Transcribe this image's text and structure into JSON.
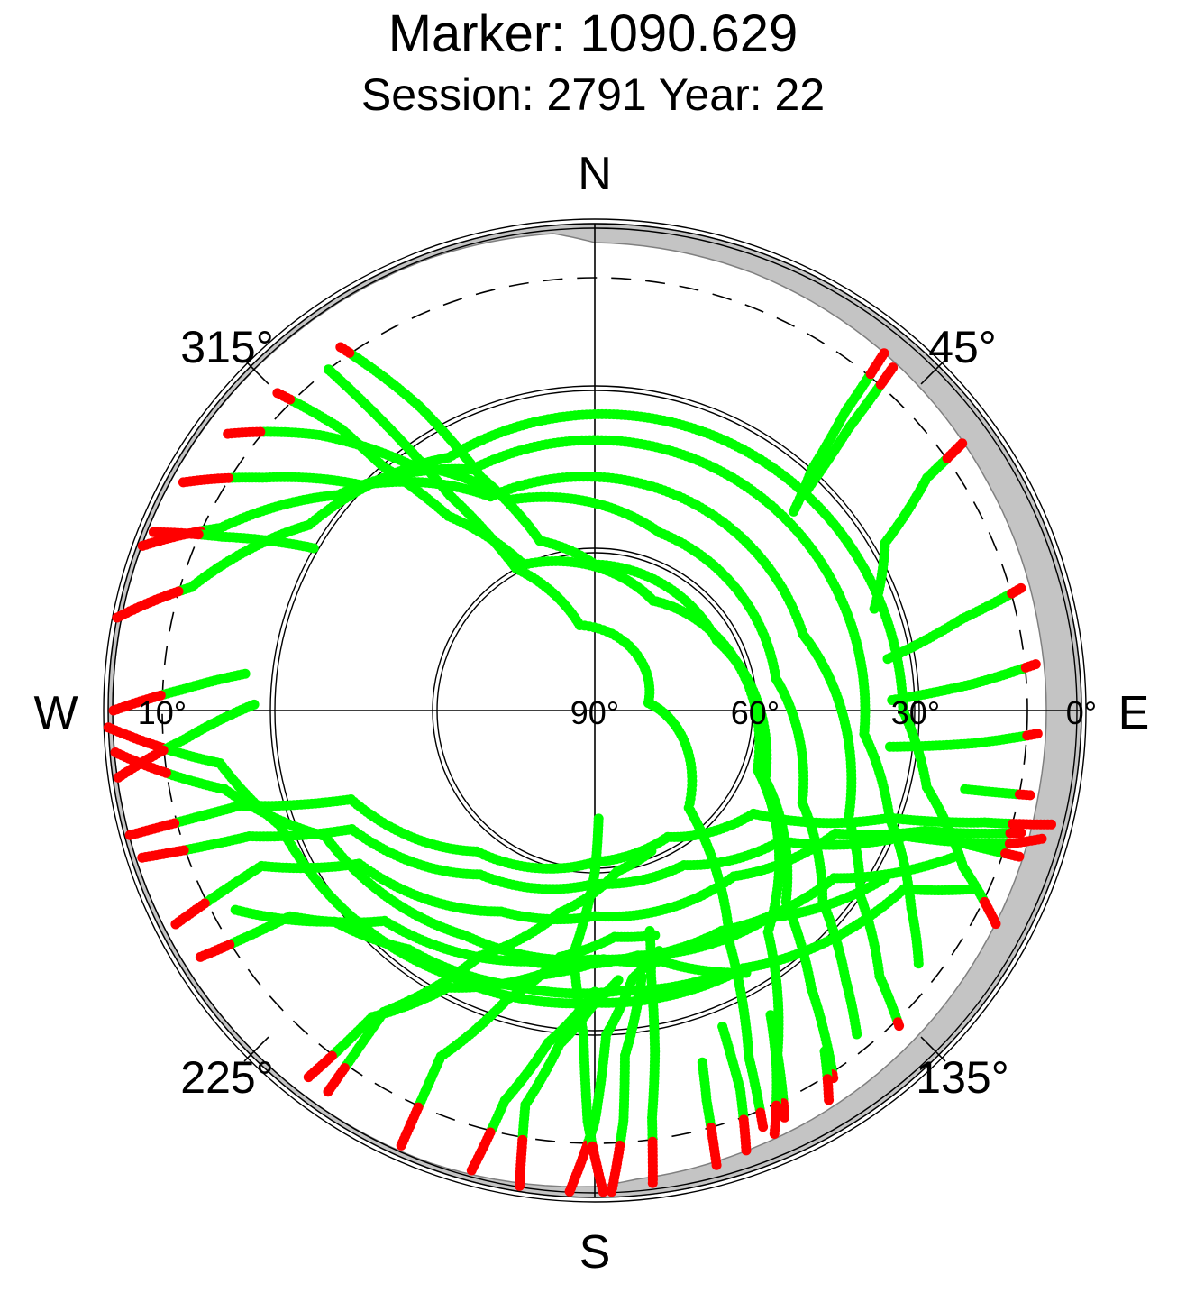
{
  "title": "Marker: 1090.629",
  "subtitle": "Session: 2791 Year: 22",
  "compass": {
    "north": "N",
    "south": "S",
    "west": "W",
    "east": "E"
  },
  "azimuth_labels": [
    "315°",
    "45°",
    "225°",
    "135°"
  ],
  "elevation_labels": [
    "10°",
    "90°",
    "60°",
    "30°",
    "0°"
  ],
  "colors": {
    "track": "#00ff00",
    "low_elevation": "#ff0000",
    "obstruction": "#c4c4c4",
    "rings": "#000000"
  },
  "chart_data": {
    "type": "scatter",
    "projection": "polar-skyplot",
    "title": "Marker: 1090.629",
    "subtitle": "Session: 2791 Year: 22",
    "axes": {
      "azimuth": {
        "unit": "degree",
        "labels": [
          {
            "az": 315,
            "text": "315°"
          },
          {
            "az": 45,
            "text": "45°"
          },
          {
            "az": 225,
            "text": "225°"
          },
          {
            "az": 135,
            "text": "135°"
          }
        ]
      },
      "elevation": {
        "unit": "degree",
        "range": [
          0,
          90
        ],
        "labels": [
          {
            "el": 10,
            "text": "10°",
            "side": "west"
          },
          {
            "el": 90,
            "text": "90°",
            "side": "east"
          },
          {
            "el": 60,
            "text": "60°",
            "side": "east"
          },
          {
            "el": 30,
            "text": "30°",
            "side": "east"
          },
          {
            "el": 0,
            "text": "0°",
            "side": "east"
          }
        ]
      },
      "rings_el": [
        60,
        30,
        0
      ],
      "dashed_ring_el": 10
    },
    "obstruction_mask": [
      {
        "az": 0,
        "el": 3.5
      },
      {
        "az": 20,
        "el": 4
      },
      {
        "az": 40,
        "el": 5
      },
      {
        "az": 60,
        "el": 6
      },
      {
        "az": 80,
        "el": 6.5
      },
      {
        "az": 100,
        "el": 6.5
      },
      {
        "az": 120,
        "el": 6
      },
      {
        "az": 140,
        "el": 5
      },
      {
        "az": 160,
        "el": 4
      },
      {
        "az": 175,
        "el": 3
      },
      {
        "az": 180,
        "el": 2
      },
      {
        "az": 200,
        "el": 1
      },
      {
        "az": 220,
        "el": 0.8
      },
      {
        "az": 260,
        "el": 0.8
      },
      {
        "az": 300,
        "el": 0.8
      },
      {
        "az": 340,
        "el": 1
      },
      {
        "az": 355,
        "el": 1.5
      }
    ],
    "low_elevation_threshold": 10,
    "series": [
      {
        "points": [
          [
            322,
            10
          ],
          [
            324,
            26
          ],
          [
            326,
            42
          ],
          [
            331,
            60
          ],
          [
            350,
            74
          ],
          [
            82,
            80
          ],
          [
            136,
            65
          ],
          [
            150,
            40
          ],
          [
            156,
            20
          ],
          [
            158,
            7
          ]
        ]
      },
      {
        "points": [
          [
            315,
            7
          ],
          [
            318,
            20
          ],
          [
            319,
            30
          ],
          [
            323,
            45
          ],
          [
            334,
            60
          ],
          [
            28,
            67
          ],
          [
            110,
            58
          ],
          [
            142,
            38
          ],
          [
            152,
            18
          ],
          [
            155,
            7
          ]
        ]
      },
      {
        "points": [
          [
            325,
            8
          ],
          [
            330,
            25
          ],
          [
            334,
            42
          ],
          [
            342,
            57
          ],
          [
            0,
            63
          ],
          [
            60,
            64
          ],
          [
            112,
            56
          ],
          [
            135,
            40
          ],
          [
            142,
            25
          ],
          [
            147,
            9
          ]
        ]
      },
      {
        "points": [
          [
            307,
            5
          ],
          [
            315,
            18
          ],
          [
            323,
            33
          ],
          [
            338,
            48
          ],
          [
            20,
            55
          ],
          [
            80,
            56
          ],
          [
            114,
            48
          ],
          [
            130,
            35
          ],
          [
            137,
            22
          ],
          [
            141,
            13
          ]
        ]
      },
      {
        "points": [
          [
            299,
            3
          ],
          [
            305,
            15
          ],
          [
            314,
            30
          ],
          [
            334,
            46
          ],
          [
            70,
            49
          ],
          [
            113,
            39
          ],
          [
            125,
            30
          ],
          [
            133,
            18
          ],
          [
            136,
            9
          ]
        ]
      },
      {
        "points": [
          [
            290,
            1
          ],
          [
            296,
            13
          ],
          [
            310,
            28
          ],
          [
            333,
            40
          ],
          [
            60,
            40
          ],
          [
            95,
            40
          ],
          [
            110,
            32
          ],
          [
            122,
            21
          ],
          [
            128,
            14
          ]
        ]
      },
      {
        "points": [
          [
            281,
            0
          ],
          [
            287,
            12
          ],
          [
            303,
            27
          ],
          [
            330,
            36
          ],
          [
            50,
            34
          ],
          [
            90,
            33
          ],
          [
            103,
            27
          ],
          [
            113,
            16
          ],
          [
            118,
            6
          ]
        ]
      },
      {
        "points": [
          [
            255,
            1
          ],
          [
            255,
            22
          ],
          [
            250,
            42
          ],
          [
            220,
            56
          ],
          [
            180,
            62
          ],
          [
            150,
            63
          ],
          [
            123,
            55
          ],
          [
            110,
            32
          ],
          [
            106,
            15
          ],
          [
            104,
            3
          ]
        ]
      },
      {
        "points": [
          [
            252,
            2
          ],
          [
            250,
            22
          ],
          [
            244,
            40
          ],
          [
            215,
            53
          ],
          [
            180,
            58
          ],
          [
            150,
            57
          ],
          [
            125,
            48
          ],
          [
            112,
            28
          ],
          [
            108,
            10
          ],
          [
            106,
            4
          ]
        ]
      },
      {
        "points": [
          [
            243,
            3
          ],
          [
            245,
            22
          ],
          [
            237,
            38
          ],
          [
            205,
            49
          ],
          [
            180,
            52
          ],
          [
            140,
            50
          ],
          [
            117,
            40
          ],
          [
            110,
            25
          ],
          [
            106,
            8
          ]
        ]
      },
      {
        "points": [
          [
            265,
            1
          ],
          [
            258,
            20
          ],
          [
            245,
            35
          ],
          [
            210,
            42
          ],
          [
            180,
            44
          ],
          [
            150,
            43
          ],
          [
            125,
            36
          ],
          [
            112,
            18
          ]
        ]
      },
      {
        "points": [
          [
            238,
            4
          ],
          [
            236,
            22
          ],
          [
            225,
            35
          ],
          [
            195,
            42
          ],
          [
            170,
            44
          ],
          [
            140,
            40
          ],
          [
            120,
            28
          ]
        ]
      },
      {
        "points": [
          [
            268,
            0
          ],
          [
            262,
            20
          ],
          [
            250,
            28
          ],
          [
            210,
            34
          ],
          [
            180,
            36
          ],
          [
            150,
            35
          ],
          [
            120,
            24
          ],
          [
            115,
            12
          ]
        ]
      },
      {
        "points": [
          [
            241,
            14
          ],
          [
            231,
            28
          ],
          [
            218,
            34
          ],
          [
            196,
            37
          ],
          [
            175,
            38
          ],
          [
            155,
            36
          ]
        ]
      },
      {
        "points": [
          [
            215,
            4
          ],
          [
            215,
            22
          ],
          [
            205,
            40
          ],
          [
            190,
            52
          ],
          [
            172,
            60
          ],
          [
            158,
            62
          ]
        ]
      },
      {
        "points": [
          [
            218,
            4
          ],
          [
            216,
            20
          ],
          [
            208,
            32
          ],
          [
            192,
            40
          ],
          [
            178,
            44
          ],
          [
            165,
            42
          ],
          [
            150,
            34
          ]
        ]
      },
      {
        "points": [
          [
            204,
            2
          ],
          [
            204,
            20
          ],
          [
            197,
            34
          ],
          [
            188,
            44
          ],
          [
            175,
            48
          ],
          [
            165,
            47
          ]
        ]
      },
      {
        "points": [
          [
            195,
            2
          ],
          [
            193,
            16
          ],
          [
            188,
            28
          ],
          [
            180,
            38
          ]
        ]
      },
      {
        "points": [
          [
            189,
            1
          ],
          [
            190,
            16
          ],
          [
            186,
            28
          ],
          [
            180,
            36
          ],
          [
            175,
            40
          ]
        ]
      },
      {
        "points": [
          [
            183,
            1
          ],
          [
            180,
            14
          ],
          [
            178,
            30
          ],
          [
            172,
            40
          ],
          [
            165,
            44
          ]
        ]
      },
      {
        "points": [
          [
            178,
            1
          ],
          [
            176,
            14
          ],
          [
            175,
            26
          ],
          [
            170,
            40
          ]
        ]
      },
      {
        "points": [
          [
            179,
            1
          ],
          [
            181,
            14
          ],
          [
            182,
            30
          ],
          [
            185,
            45
          ],
          [
            180,
            60
          ],
          [
            178,
            70
          ]
        ]
      },
      {
        "points": [
          [
            173,
            2
          ],
          [
            172,
            14
          ],
          [
            170,
            26
          ],
          [
            168,
            40
          ],
          [
            166,
            48
          ]
        ]
      },
      {
        "points": [
          [
            165,
            3
          ],
          [
            164,
            15
          ],
          [
            163,
            22
          ]
        ]
      },
      {
        "points": [
          [
            161,
            4
          ],
          [
            159,
            15
          ],
          [
            158,
            27
          ]
        ]
      },
      {
        "points": [
          [
            157,
            5
          ],
          [
            153,
            16
          ],
          [
            150,
            25
          ]
        ]
      },
      {
        "points": [
          [
            149,
            6
          ],
          [
            146,
            14
          ]
        ]
      },
      {
        "points": [
          [
            39,
            5
          ],
          [
            40,
            18
          ],
          [
            42,
            30
          ],
          [
            45,
            38
          ]
        ]
      },
      {
        "points": [
          [
            41,
            6
          ],
          [
            42,
            20
          ],
          [
            44,
            34
          ]
        ]
      },
      {
        "points": [
          [
            54,
            6
          ],
          [
            55,
            15
          ],
          [
            60,
            28
          ],
          [
            70,
            35
          ]
        ]
      },
      {
        "points": [
          [
            74,
            8
          ],
          [
            76,
            20
          ],
          [
            80,
            35
          ]
        ]
      },
      {
        "points": [
          [
            84,
            8
          ],
          [
            86,
            20
          ],
          [
            88,
            35
          ]
        ]
      },
      {
        "points": [
          [
            93,
            8
          ],
          [
            95,
            20
          ],
          [
            97,
            35
          ]
        ]
      },
      {
        "points": [
          [
            101,
            8
          ],
          [
            102,
            20
          ]
        ]
      },
      {
        "points": [
          [
            109,
            7
          ],
          [
            110,
            20
          ]
        ]
      },
      {
        "points": [
          [
            292,
            2
          ],
          [
            295,
            14
          ],
          [
            300,
            30
          ]
        ]
      },
      {
        "points": [
          [
            270,
            1
          ],
          [
            273,
            14
          ],
          [
            276,
            25
          ]
        ]
      },
      {
        "points": [
          [
            262,
            1
          ],
          [
            266,
            14
          ],
          [
            271,
            27
          ]
        ]
      }
    ]
  }
}
